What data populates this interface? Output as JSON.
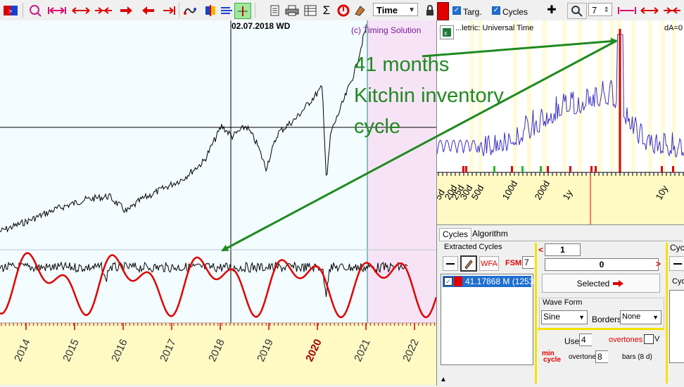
{
  "toolbar": {
    "time_combo": "Time",
    "number_combo": "7",
    "targ_label": "Targ.",
    "cycles_label": "Cycles",
    "icons": [
      "grid-icon",
      "zoom-target-icon",
      "stretch-h-icon",
      "expand-h-icon",
      "compress-h-icon",
      "arrow-right-icon",
      "arrow-left-icon",
      "arrow-end-icon",
      "wave-icon",
      "split-icon",
      "lines-icon",
      "pulse-icon",
      "document-icon",
      "printer-icon",
      "table-icon",
      "sigma-icon",
      "settings-icon",
      "eraser-icon",
      "lock-icon",
      "plus-icon",
      "magnifier-icon"
    ]
  },
  "chart": {
    "cursor_date": "02.07.2018 WD",
    "copyright": "(c) Timing Solution",
    "years": [
      "2014",
      "2015",
      "2016",
      "2017",
      "2018",
      "2019",
      "2020",
      "2021",
      "2022"
    ],
    "highlight_year": "2020"
  },
  "annotation": {
    "line1": "41 months",
    "line2": "Kitchin inventory",
    "line3": "cycle"
  },
  "spectrum": {
    "title": "...letric: Universal Time",
    "da_label": "dA=0",
    "ticks": [
      "5d",
      "20d",
      "25d",
      "30d",
      "50d",
      "100d",
      "200d",
      "1y",
      "10y"
    ]
  },
  "dialog": {
    "tabs": [
      "Cycles",
      "Algorithm"
    ],
    "extracted_title": "Extracted Cycles",
    "wfa_label": "WFA",
    "fsm_label": "FSM",
    "fsm_value": "7",
    "cycle_item": "41.17868 M (1253",
    "counter_value": "1",
    "zero_value": "0",
    "selected_button": "Selected",
    "waveform_title": "Wave Form",
    "waveform_value": "Sine",
    "borders_label": "Borders",
    "borders_value": "None",
    "use_label": "Use",
    "use_value": "4",
    "overtones_label": "overtones",
    "v_label": "V",
    "min_cycle_line1": "min",
    "min_cycle_line2": "cycle",
    "overtone_label": "overtone",
    "overtone_value": "8",
    "bars_label": "bars (8 d)",
    "right_header": "Cycl",
    "right_sub": "Cyc"
  },
  "colors": {
    "annotation_green": "#1f8a1f",
    "cycle_red": "#e00000",
    "spectrum_blue": "#3a2fc8",
    "price_black": "#000000",
    "future_pink": "#f6e4f6",
    "chart_bg": "#f3fcff"
  }
}
